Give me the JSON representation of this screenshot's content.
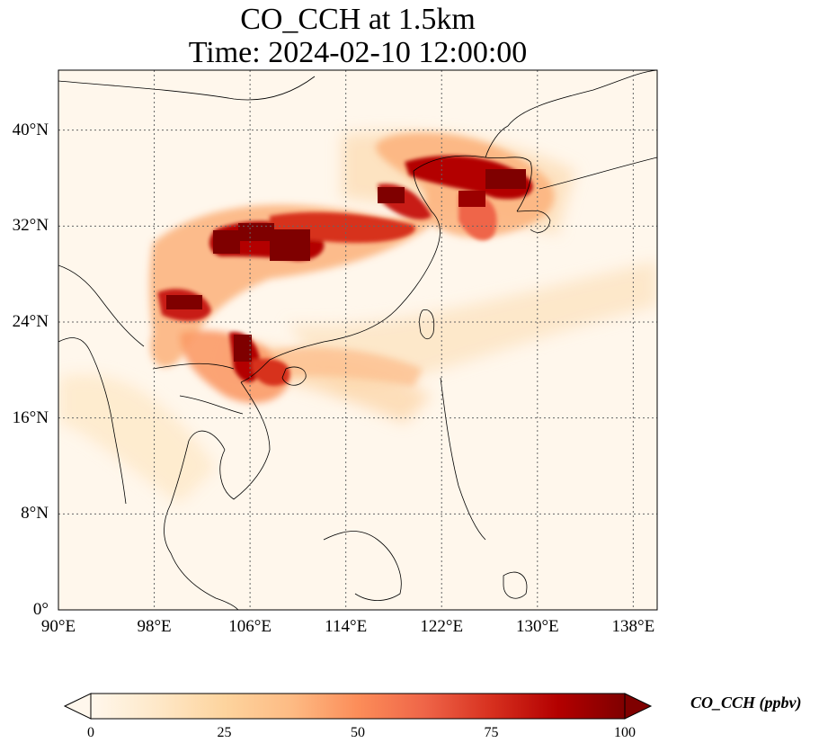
{
  "title_line1": "CO_CCH at 1.5km",
  "title_line2": "Time: 2024-02-10 12:00:00",
  "map": {
    "lon_range": [
      90,
      140
    ],
    "lat_range": [
      0,
      45
    ],
    "x_ticks": [
      {
        "lon": 90,
        "label": "90°E"
      },
      {
        "lon": 98,
        "label": "98°E"
      },
      {
        "lon": 106,
        "label": "106°E"
      },
      {
        "lon": 114,
        "label": "114°E"
      },
      {
        "lon": 122,
        "label": "122°E"
      },
      {
        "lon": 130,
        "label": "130°E"
      },
      {
        "lon": 138,
        "label": "138°E"
      }
    ],
    "y_ticks": [
      {
        "lat": 0,
        "label": "0°"
      },
      {
        "lat": 8,
        "label": "8°N"
      },
      {
        "lat": 16,
        "label": "16°N"
      },
      {
        "lat": 24,
        "label": "24°N"
      },
      {
        "lat": 32,
        "label": "32°N"
      },
      {
        "lat": 40,
        "label": "40°N"
      }
    ],
    "gridlines": "dotted"
  },
  "colorbar": {
    "label": "CO_CCH (ppbv)",
    "range": [
      0,
      100
    ],
    "extend": "both",
    "colormap": "OrRd",
    "colors": [
      "#fff7ec",
      "#fee8c8",
      "#fdd49e",
      "#fdbb84",
      "#fc8d59",
      "#ef6548",
      "#d7301f",
      "#b30000",
      "#7f0000"
    ],
    "ticks": [
      {
        "value": 0,
        "label": "0"
      },
      {
        "value": 25,
        "label": "25"
      },
      {
        "value": 50,
        "label": "50"
      },
      {
        "value": 75,
        "label": "75"
      },
      {
        "value": 100,
        "label": "100"
      }
    ]
  }
}
